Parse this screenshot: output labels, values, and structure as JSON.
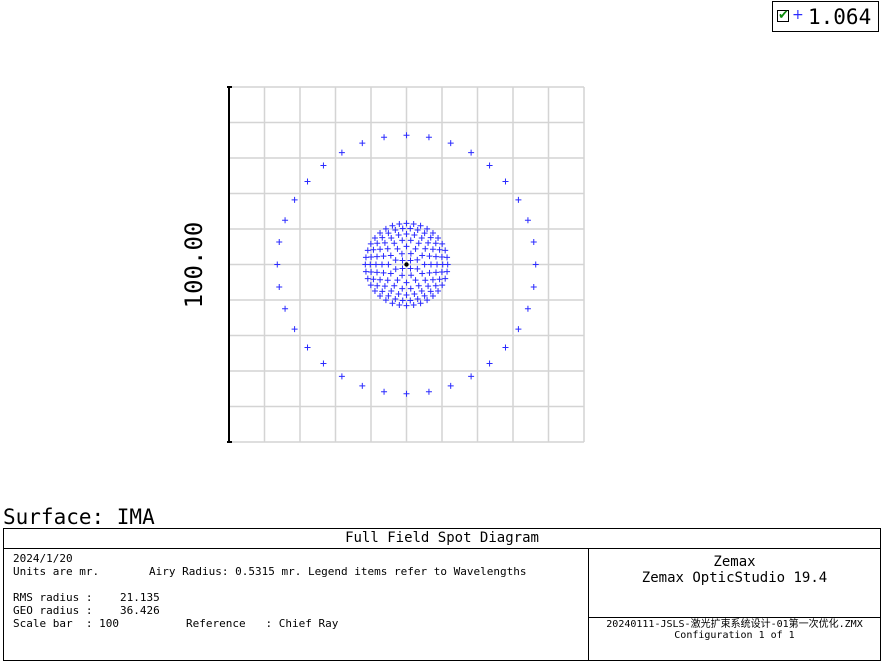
{
  "legend": {
    "checked": true,
    "symbol": "+",
    "wavelength": "1.064",
    "color": "#2b2bff"
  },
  "scale_bar_label": "100.00",
  "surface_label": "Surface: IMA",
  "info": {
    "title": "Full Field Spot Diagram",
    "date": "2024/1/20",
    "units": "Units are mr.",
    "airy": "Airy Radius: 0.5315 mr. Legend items refer to Wavelengths",
    "rms_label": "RMS radius :",
    "rms_value": "21.135",
    "geo_label": "GEO radius :",
    "geo_value": "36.426",
    "scale_bar": "Scale bar  : 100",
    "reference": "Reference   : Chief Ray",
    "brand1": "Zemax",
    "brand2": "Zemax OpticStudio 19.4",
    "filename": "20240111-JSLS-激光扩束系统设计-01第一次优化.ZMX",
    "configuration": "Configuration 1 of 1"
  },
  "chart_data": {
    "type": "scatter",
    "title": "Full Field Spot Diagram",
    "units": "mr",
    "scale_bar": 100,
    "grid": true,
    "grid_divisions": 10,
    "box_half_width": 50,
    "marker": "+",
    "marker_color": "#2b2bff",
    "chief_ray": {
      "x": 0,
      "y": 0
    },
    "series": [
      {
        "name": "1.064",
        "rings": [
          {
            "radius": 36.4,
            "count": 36,
            "start_angle_deg": 0
          },
          {
            "radius": 11.6,
            "count": 36,
            "start_angle_deg": 0
          },
          {
            "radius": 10.2,
            "count": 30,
            "start_angle_deg": 6
          },
          {
            "radius": 8.6,
            "count": 24,
            "start_angle_deg": 0
          },
          {
            "radius": 6.9,
            "count": 18,
            "start_angle_deg": 10
          },
          {
            "radius": 5.1,
            "count": 12,
            "start_angle_deg": 0
          },
          {
            "radius": 3.3,
            "count": 8,
            "start_angle_deg": 22
          },
          {
            "radius": 1.6,
            "count": 4,
            "start_angle_deg": 45
          }
        ]
      }
    ]
  }
}
